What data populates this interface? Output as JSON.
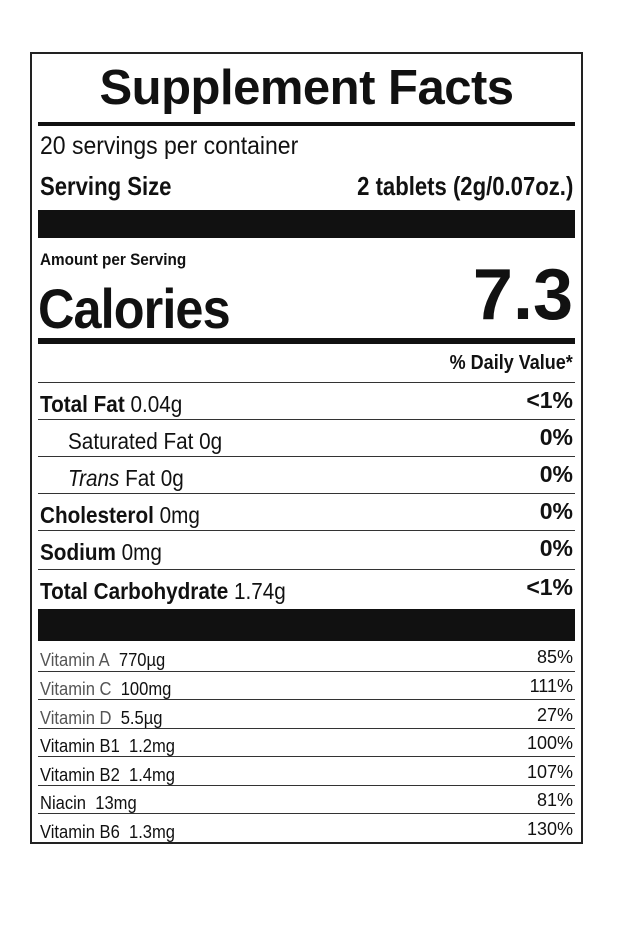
{
  "title": "Supplement Facts",
  "servings_per_container": "20 servings per container",
  "serving_size_label": "Serving Size",
  "serving_size_value": "2 tablets (2g/0.07oz.)",
  "amount_per_serving": "Amount per Serving",
  "calories_label": "Calories",
  "calories_value": "7.3",
  "daily_value_header": "% Daily Value*",
  "nutrients": [
    {
      "name": "Total Fat",
      "amount": "0.04g",
      "dv": "<1%"
    },
    {
      "name": "Saturated Fat",
      "amount": "0g",
      "dv": "0%"
    },
    {
      "name": "Trans",
      "name_suffix": "Fat",
      "amount": "0g",
      "dv": "0%"
    },
    {
      "name": "Cholesterol",
      "amount": "0mg",
      "dv": "0%"
    },
    {
      "name": "Sodium",
      "amount": "0mg",
      "dv": "0%"
    },
    {
      "name": "Total Carbohydrate",
      "amount": "1.74g",
      "dv": "<1%"
    }
  ],
  "vitamins": [
    {
      "name": "Vitamin A",
      "amount": "770µg",
      "dv": "85%"
    },
    {
      "name": "Vitamin C",
      "amount": "100mg",
      "dv": "111%"
    },
    {
      "name": "Vitamin D",
      "amount": "5.5µg",
      "dv": "27%"
    },
    {
      "name": "Vitamin B1",
      "amount": "1.2mg",
      "dv": "100%"
    },
    {
      "name": "Vitamin B2",
      "amount": "1.4mg",
      "dv": "107%"
    },
    {
      "name": "Niacin",
      "amount": "13mg",
      "dv": "81%"
    },
    {
      "name": "Vitamin B6",
      "amount": "1.3mg",
      "dv": "130%"
    }
  ]
}
